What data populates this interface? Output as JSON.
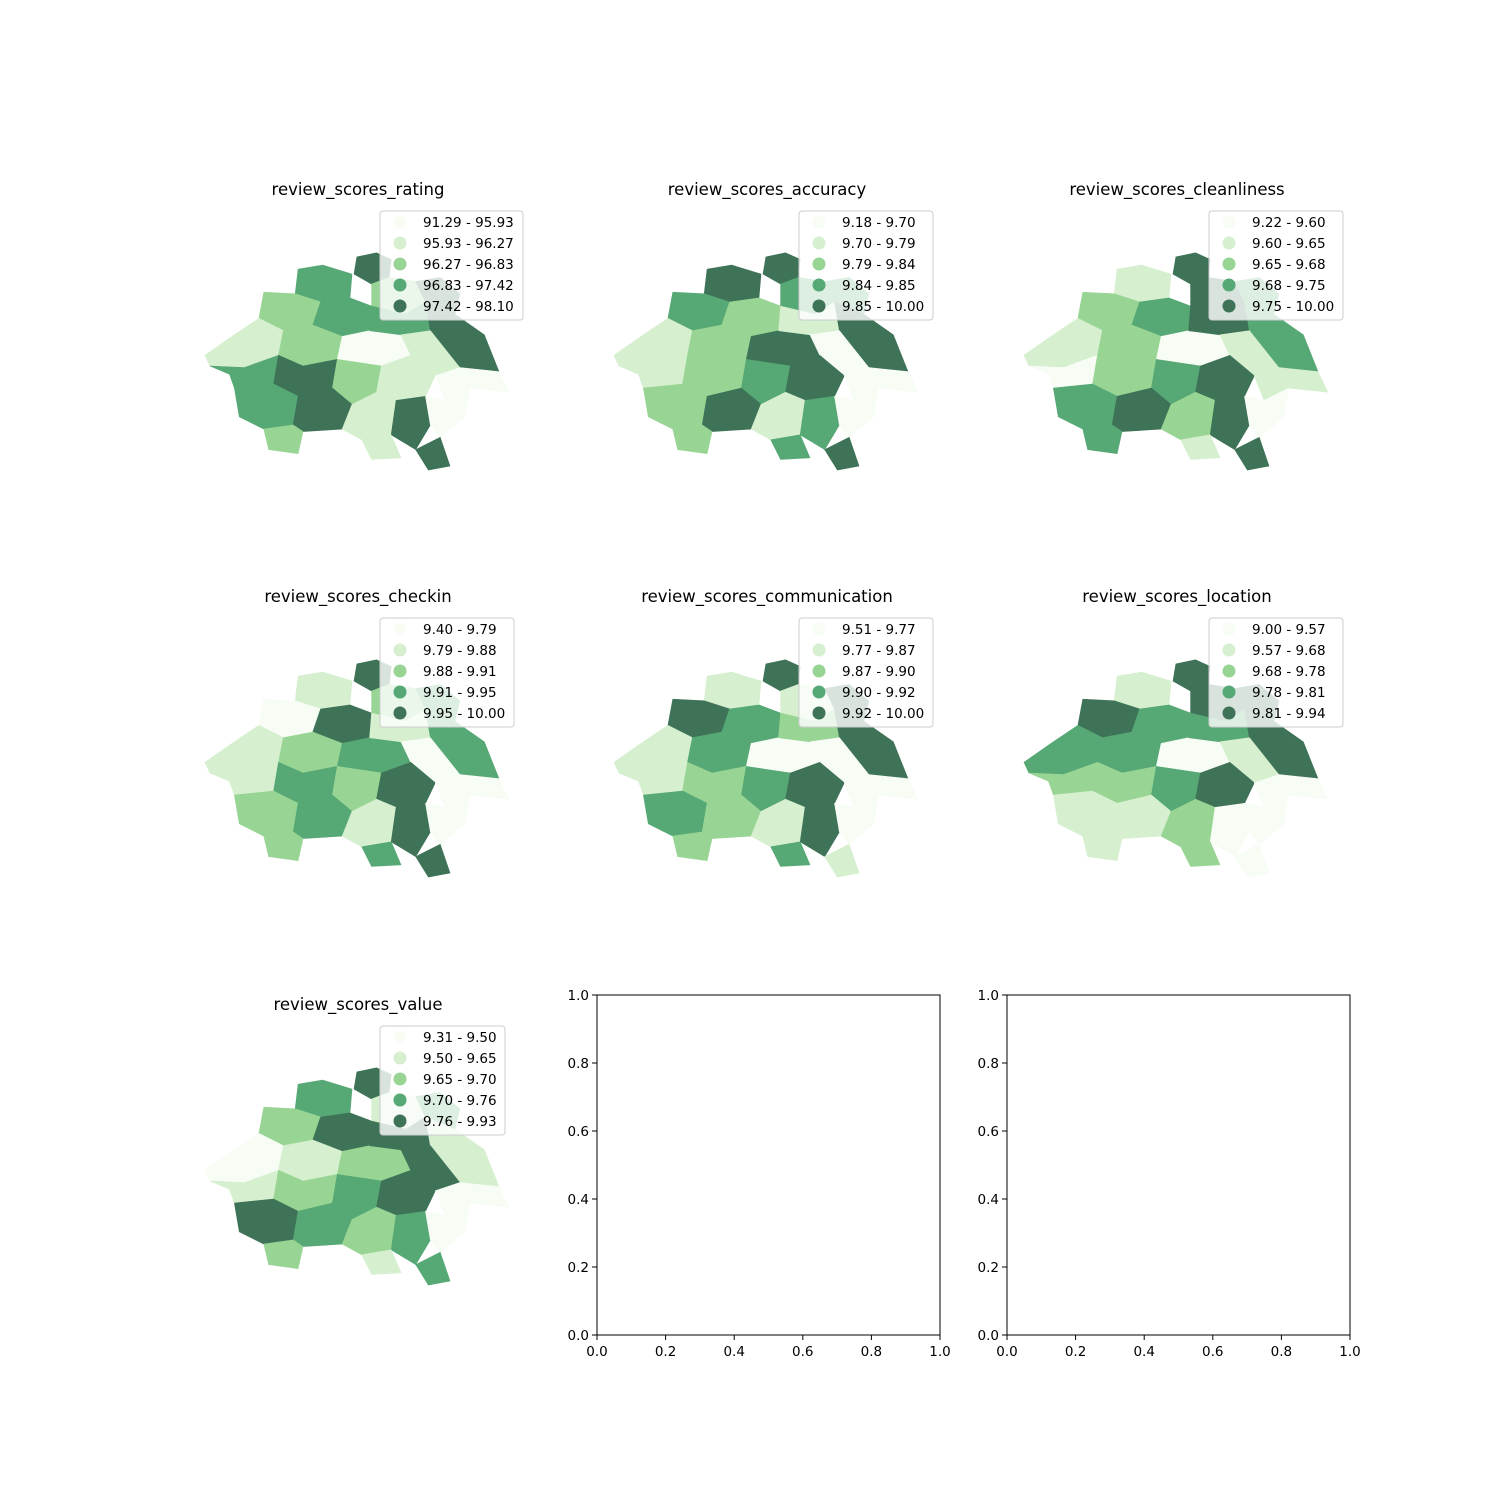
{
  "colors": [
    "#f7fcf5",
    "#d5efcf",
    "#98d594",
    "#56a875",
    "#3e7357"
  ],
  "chart_data": [
    {
      "type": "choropleth",
      "title": "review_scores_rating",
      "legend": [
        "91.29 - 95.93",
        "95.93 - 96.27",
        "96.27 - 96.83",
        "96.83 - 97.42",
        "97.42 - 98.10"
      ],
      "region_classes": [
        4,
        3,
        2,
        3,
        2,
        4,
        1,
        2,
        0,
        3,
        4,
        1,
        3,
        4,
        2,
        1,
        0,
        3,
        4,
        1,
        4,
        0,
        2,
        1,
        4
      ]
    },
    {
      "type": "choropleth",
      "title": "review_scores_accuracy",
      "legend": [
        "9.18 - 9.70",
        "9.70 - 9.79",
        "9.79 - 9.84",
        "9.84 - 9.85",
        "9.85 - 10.00"
      ],
      "region_classes": [
        4,
        4,
        3,
        2,
        3,
        3,
        1,
        2,
        4,
        1,
        4,
        0,
        1,
        2,
        3,
        4,
        0,
        2,
        4,
        1,
        3,
        0,
        2,
        3,
        4
      ]
    },
    {
      "type": "choropleth",
      "title": "review_scores_cleanliness",
      "legend": [
        "9.22 - 9.60",
        "9.60 - 9.65",
        "9.65 - 9.68",
        "9.68 - 9.75",
        "9.75 - 10.00"
      ],
      "region_classes": [
        4,
        1,
        2,
        3,
        4,
        3,
        1,
        2,
        0,
        4,
        3,
        1,
        0,
        2,
        3,
        4,
        1,
        3,
        4,
        2,
        4,
        0,
        3,
        1,
        4
      ]
    },
    {
      "type": "choropleth",
      "title": "review_scores_checkin",
      "legend": [
        "9.40 - 9.79",
        "9.79 - 9.88",
        "9.88 - 9.91",
        "9.91 - 9.95",
        "9.95 - 10.00"
      ],
      "region_classes": [
        4,
        1,
        0,
        4,
        2,
        3,
        1,
        2,
        3,
        1,
        3,
        0,
        1,
        3,
        2,
        4,
        0,
        2,
        3,
        1,
        4,
        0,
        2,
        3,
        4
      ]
    },
    {
      "type": "choropleth",
      "title": "review_scores_communication",
      "legend": [
        "9.51 - 9.77",
        "9.77 - 9.87",
        "9.87 - 9.90",
        "9.90 - 9.92",
        "9.92 - 10.00"
      ],
      "region_classes": [
        4,
        1,
        4,
        3,
        1,
        4,
        1,
        3,
        0,
        2,
        4,
        0,
        1,
        2,
        3,
        4,
        0,
        3,
        2,
        1,
        4,
        0,
        2,
        3,
        1
      ]
    },
    {
      "type": "choropleth",
      "title": "review_scores_location",
      "legend": [
        "9.00 - 9.57",
        "9.57 - 9.68",
        "9.68 - 9.78",
        "9.78 - 9.81",
        "9.81 - 9.94"
      ],
      "region_classes": [
        4,
        1,
        4,
        3,
        4,
        4,
        3,
        3,
        0,
        3,
        4,
        1,
        2,
        2,
        3,
        4,
        0,
        1,
        1,
        2,
        0,
        0,
        1,
        2,
        0
      ]
    },
    {
      "type": "choropleth",
      "title": "review_scores_value",
      "legend": [
        "9.31 - 9.50",
        "9.50 - 9.65",
        "9.65 - 9.70",
        "9.70 - 9.76",
        "9.76 - 9.93"
      ],
      "region_classes": [
        4,
        3,
        2,
        4,
        1,
        3,
        0,
        1,
        2,
        4,
        1,
        4,
        1,
        2,
        3,
        4,
        0,
        4,
        3,
        2,
        3,
        0,
        2,
        1,
        3
      ]
    },
    {
      "type": "empty",
      "title": "",
      "xlim": [
        0,
        1
      ],
      "ylim": [
        0,
        1
      ],
      "xticks": [
        "0.0",
        "0.2",
        "0.4",
        "0.6",
        "0.8",
        "1.0"
      ],
      "yticks": [
        "0.0",
        "0.2",
        "0.4",
        "0.6",
        "0.8",
        "1.0"
      ]
    },
    {
      "type": "empty",
      "title": "",
      "xlim": [
        0,
        1
      ],
      "ylim": [
        0,
        1
      ],
      "xticks": [
        "0.0",
        "0.2",
        "0.4",
        "0.6",
        "0.8",
        "1.0"
      ],
      "yticks": [
        "0.0",
        "0.2",
        "0.4",
        "0.6",
        "0.8",
        "1.0"
      ]
    }
  ]
}
